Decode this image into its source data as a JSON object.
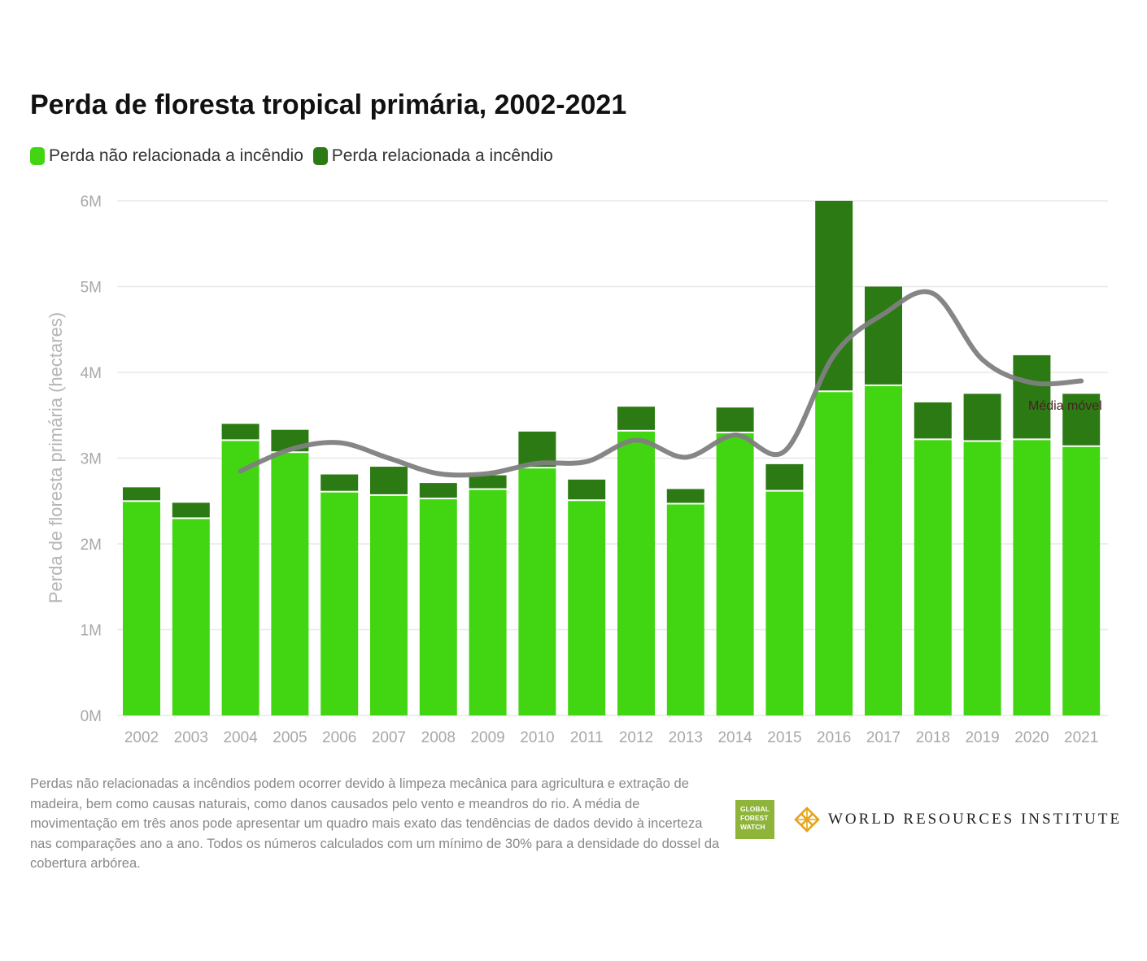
{
  "title": "Perda de floresta tropical primária, 2002-2021",
  "legend": {
    "non_fire_label": "Perda não relacionada a incêndio",
    "fire_label": "Perda relacionada a incêndio"
  },
  "colors": {
    "non_fire": "#42d612",
    "fire": "#2c7a13",
    "moving_average": "#7f7f7f",
    "moving_average_highlight": "#4a2028"
  },
  "chart_data": {
    "type": "bar",
    "stacked": true,
    "ylabel": "Perda de floresta primária (hectares)",
    "ylim": [
      0,
      6000000
    ],
    "yticks": [
      "0M",
      "1M",
      "2M",
      "3M",
      "4M",
      "5M",
      "6M"
    ],
    "grid": true,
    "categories": [
      "2002",
      "2003",
      "2004",
      "2005",
      "2006",
      "2007",
      "2008",
      "2009",
      "2010",
      "2011",
      "2012",
      "2013",
      "2014",
      "2015",
      "2016",
      "2017",
      "2018",
      "2019",
      "2020",
      "2021"
    ],
    "series": [
      {
        "name": "Perda não relacionada a incêndio",
        "values": [
          2.49,
          2.29,
          3.2,
          3.06,
          2.6,
          2.56,
          2.52,
          2.63,
          2.88,
          2.5,
          3.31,
          2.46,
          3.29,
          2.61,
          3.77,
          3.84,
          3.21,
          3.19,
          3.21,
          3.13
        ]
      },
      {
        "name": "Perda relacionada a incêndio",
        "values": [
          0.17,
          0.19,
          0.2,
          0.27,
          0.21,
          0.34,
          0.19,
          0.17,
          0.43,
          0.25,
          0.29,
          0.18,
          0.3,
          0.32,
          2.23,
          1.16,
          0.44,
          0.56,
          0.99,
          0.62
        ]
      }
    ],
    "value_unit": "M hectares",
    "moving_average": {
      "label": "Média móvel",
      "x": [
        "2004",
        "2005",
        "2006",
        "2007",
        "2008",
        "2009",
        "2010",
        "2011",
        "2012",
        "2013",
        "2014",
        "2015",
        "2016",
        "2017",
        "2018",
        "2019",
        "2020",
        "2021"
      ],
      "values": [
        2.85,
        3.1,
        3.18,
        3.0,
        2.82,
        2.82,
        2.94,
        2.96,
        3.21,
        3.01,
        3.27,
        3.08,
        4.2,
        4.68,
        4.92,
        4.15,
        3.88,
        3.9
      ]
    }
  },
  "footnote": "Perdas não relacionadas a incêndios podem ocorrer devido à limpeza mecânica para agricultura e extração de madeira, bem como causas naturais, como danos causados pelo vento e meandros do rio. A média de movimentação em três anos pode apresentar um quadro mais exato das tendências de dados devido à incerteza nas comparações ano a ano. Todos os números calculados com um mínimo de 30% para a densidade do dossel da cobertura arbórea.",
  "logos": {
    "gfw": [
      "GLOBAL",
      "FOREST",
      "WATCH"
    ],
    "wri": "WORLD RESOURCES INSTITUTE"
  }
}
